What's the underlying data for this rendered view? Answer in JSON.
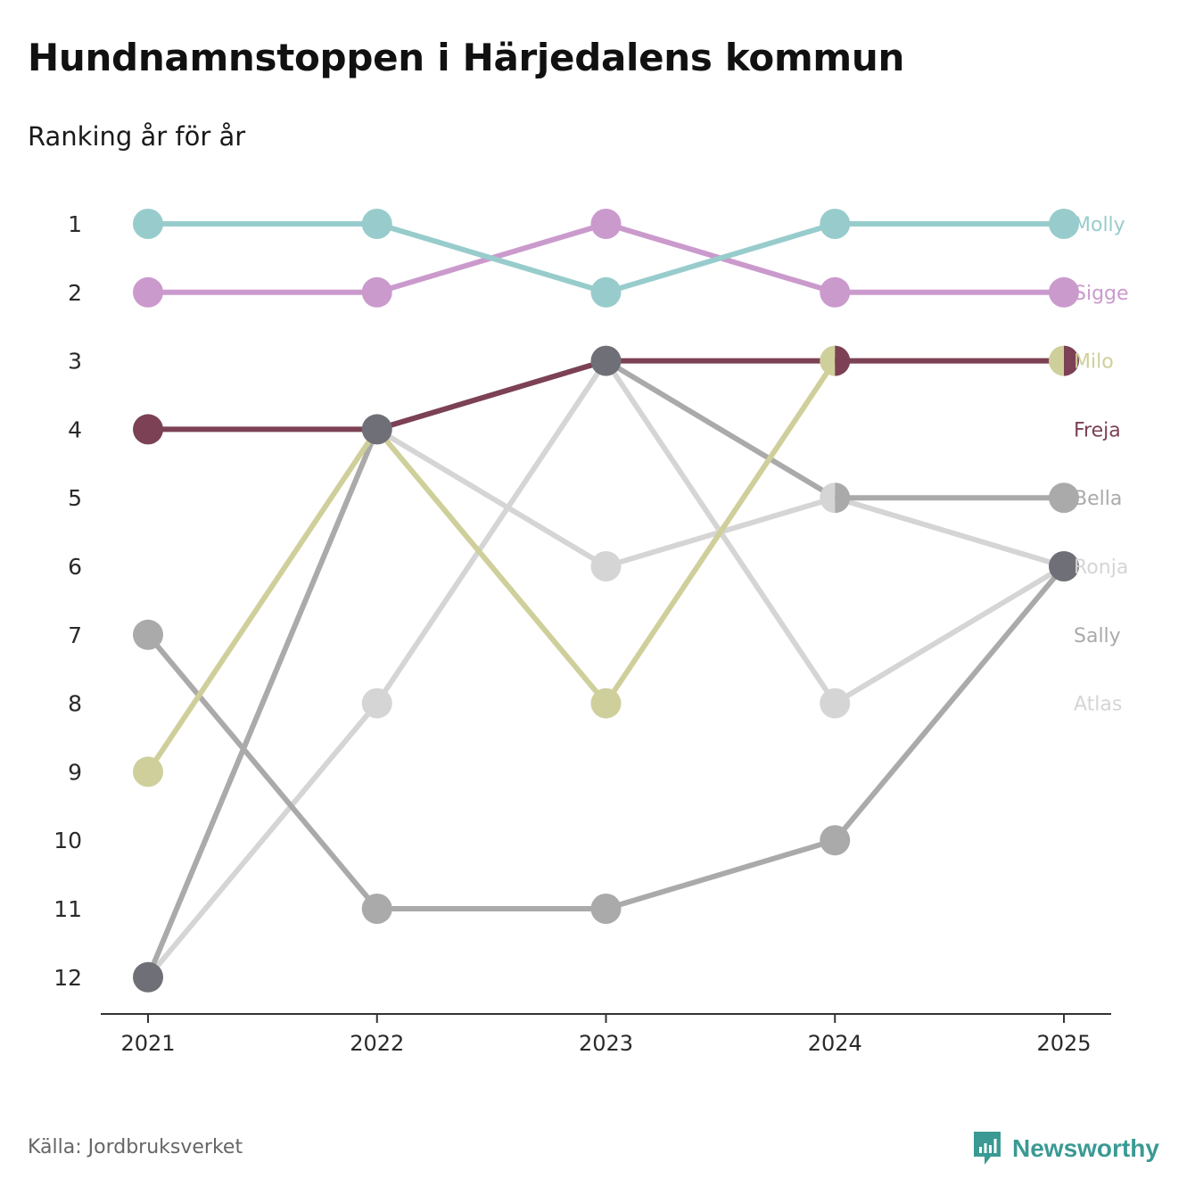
{
  "title": "Hundnamnstoppen i Härjedalens kommun",
  "subtitle": "Ranking år för år",
  "source": "Källa: Jordbruksverket",
  "brand": {
    "name": "Newsworthy",
    "icon": "newsworthy-logo-icon",
    "color": "#3a9a93"
  },
  "chart_data": {
    "type": "line",
    "subtype": "bump",
    "title": "Hundnamnstoppen i Härjedalens kommun",
    "subtitle": "Ranking år för år",
    "xlabel": "",
    "ylabel": "",
    "x": [
      "2021",
      "2022",
      "2023",
      "2024",
      "2025"
    ],
    "y_ticks": [
      "1",
      "2",
      "3",
      "4",
      "5",
      "6",
      "7",
      "8",
      "9",
      "10",
      "11",
      "12"
    ],
    "ylim": [
      1,
      12
    ],
    "y_inverted": true,
    "grid": false,
    "series": [
      {
        "name": "Atlas",
        "color": "#d5d5d5",
        "values": [
          12,
          8,
          3,
          8,
          6
        ]
      },
      {
        "name": "Sally",
        "color": "#aaaaaa",
        "values": [
          7,
          11,
          11,
          10,
          6
        ]
      },
      {
        "name": "Ronja",
        "color": "#d5d5d5",
        "values": [
          12,
          4,
          6,
          5,
          6
        ]
      },
      {
        "name": "Bella",
        "color": "#aaaaaa",
        "values": [
          12,
          4,
          3,
          5,
          5
        ]
      },
      {
        "name": "Milo",
        "color": "#cfcf9b",
        "values": [
          9,
          4,
          8,
          3,
          3
        ]
      },
      {
        "name": "Freja",
        "color": "#7c4154",
        "values": [
          4,
          4,
          3,
          3,
          3
        ]
      },
      {
        "name": "Sigge",
        "color": "#cb9acd",
        "values": [
          2,
          2,
          1,
          2,
          2
        ]
      },
      {
        "name": "Molly",
        "color": "#98cccc",
        "values": [
          1,
          1,
          2,
          1,
          1
        ]
      }
    ],
    "end_labels": [
      "Molly",
      "Sigge",
      "Milo",
      "Freja",
      "Bella",
      "Ronja",
      "Sally",
      "Atlas"
    ],
    "shared_marker_color": "#6f6f77"
  }
}
